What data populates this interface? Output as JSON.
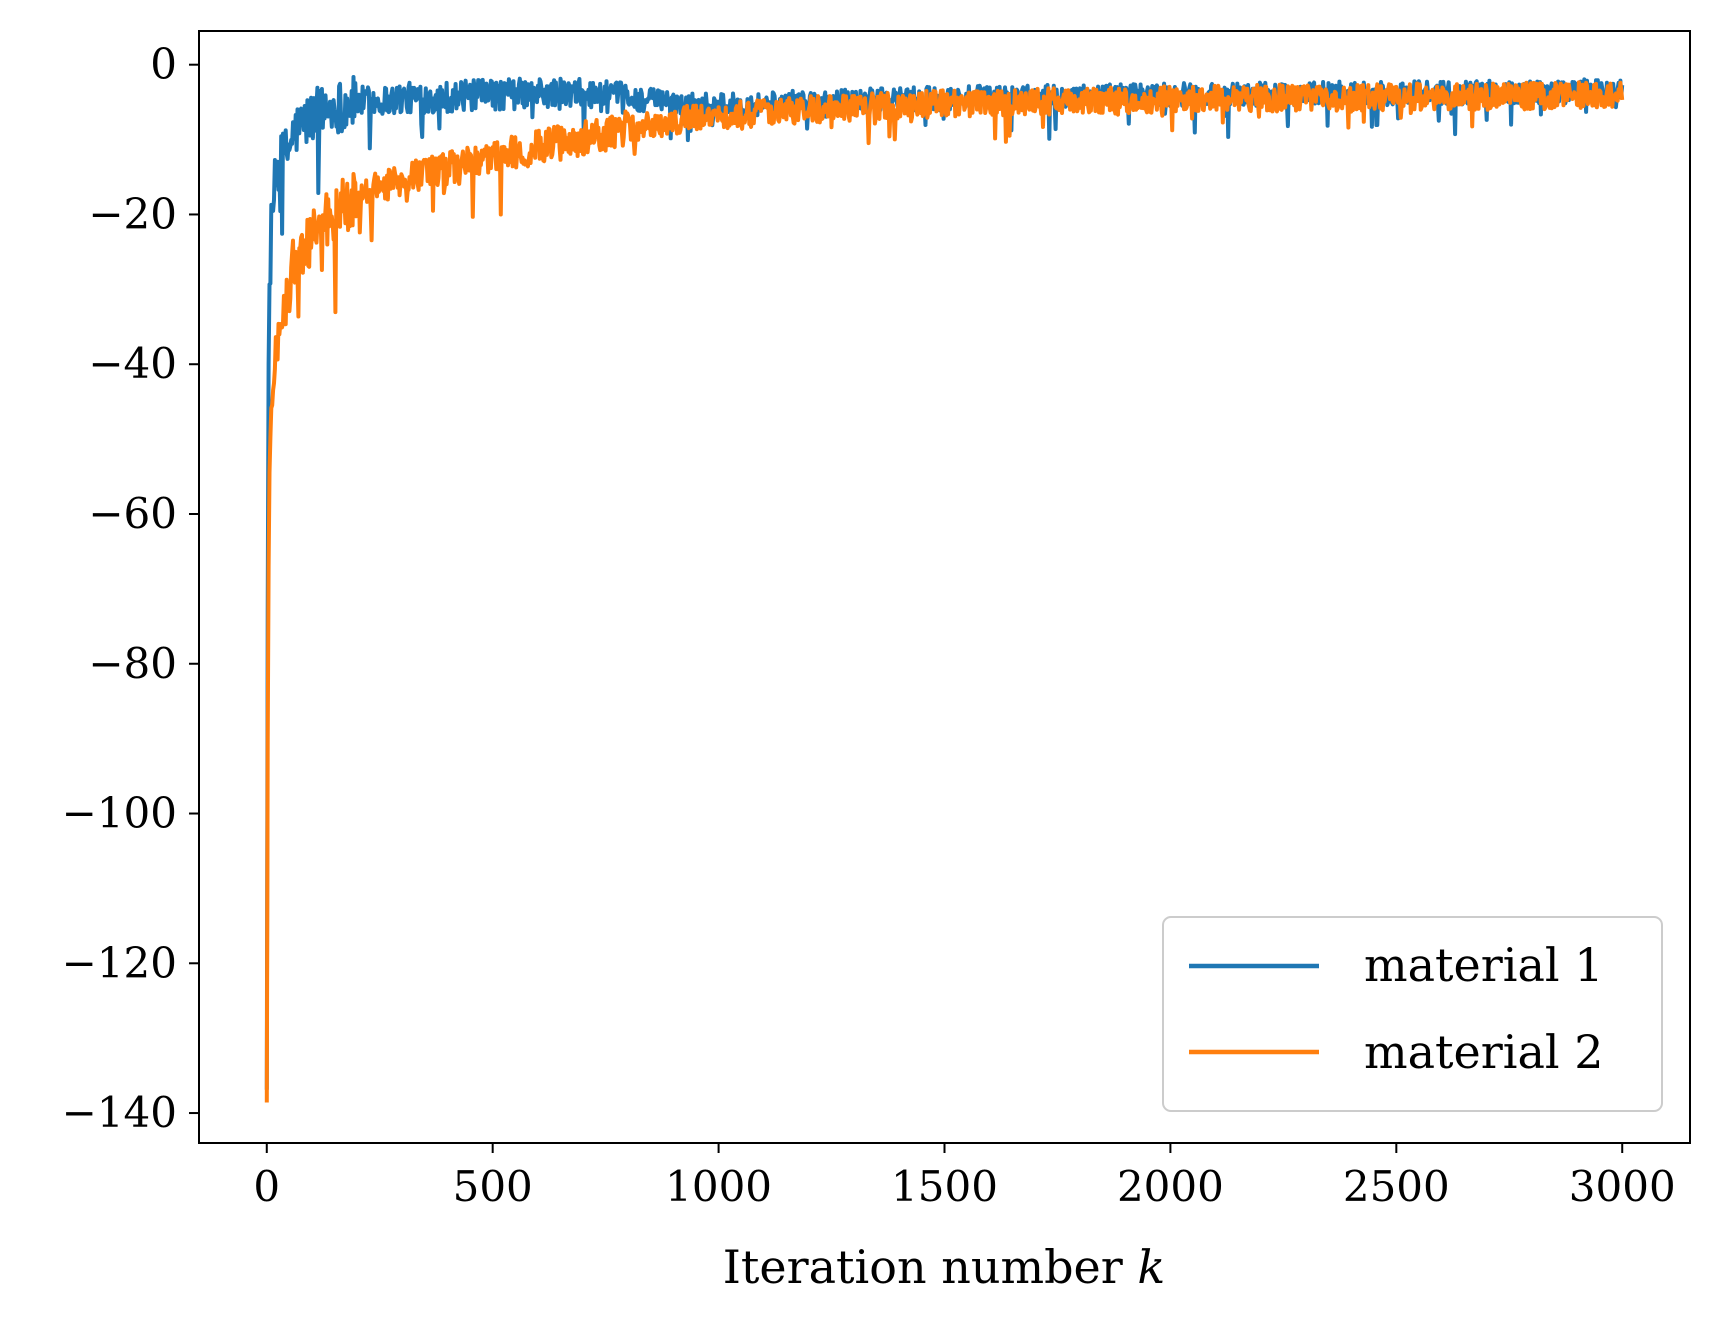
{
  "chart_data": {
    "type": "line",
    "title": "",
    "xlabel": "Iteration number",
    "xlabel_var": "k",
    "ylabel": "",
    "xlim": [
      -150,
      3150
    ],
    "ylim": [
      -144,
      4.5
    ],
    "xticks": [
      0,
      500,
      1000,
      1500,
      2000,
      2500,
      3000
    ],
    "yticks": [
      0,
      -20,
      -40,
      -60,
      -80,
      -100,
      -120,
      -140
    ],
    "xtick_labels": [
      "0",
      "500",
      "1000",
      "1500",
      "2000",
      "2500",
      "3000"
    ],
    "ytick_labels": [
      "0",
      "−20",
      "−40",
      "−60",
      "−80",
      "−100",
      "−120",
      "−140"
    ],
    "grid": false,
    "legend_position": "lower-right",
    "series": [
      {
        "name": "material 1",
        "color": "#1f77b4",
        "noise": 1.6,
        "x": [
          0,
          3,
          6,
          10,
          15,
          20,
          30,
          40,
          50,
          60,
          80,
          100,
          130,
          160,
          200,
          250,
          300,
          400,
          500,
          600,
          700,
          800,
          900,
          1000,
          1200,
          1500,
          2000,
          2500,
          3000
        ],
        "y": [
          -137,
          -45,
          -30,
          -22,
          -18,
          -15,
          -13,
          -12,
          -11,
          -9,
          -8,
          -7,
          -6,
          -5.5,
          -5,
          -4.8,
          -4.5,
          -4.3,
          -4,
          -3.8,
          -4,
          -4.5,
          -5,
          -5.5,
          -5,
          -4.5,
          -4,
          -3.8,
          -3.5
        ]
      },
      {
        "name": "material 2",
        "color": "#ff7f0e",
        "noise": 1.8,
        "x": [
          0,
          3,
          6,
          10,
          15,
          20,
          30,
          40,
          50,
          60,
          80,
          100,
          130,
          160,
          200,
          250,
          300,
          400,
          500,
          600,
          700,
          800,
          900,
          1000,
          1200,
          1500,
          2000,
          2500,
          3000
        ],
        "y": [
          -137,
          -70,
          -55,
          -48,
          -42,
          -38,
          -34,
          -31,
          -29,
          -27,
          -25,
          -23,
          -21,
          -19.5,
          -18,
          -16.5,
          -15.5,
          -14,
          -12.5,
          -11,
          -9.8,
          -8.5,
          -7.5,
          -6.8,
          -6,
          -5.2,
          -4.6,
          -4.3,
          -4.1
        ]
      }
    ]
  }
}
